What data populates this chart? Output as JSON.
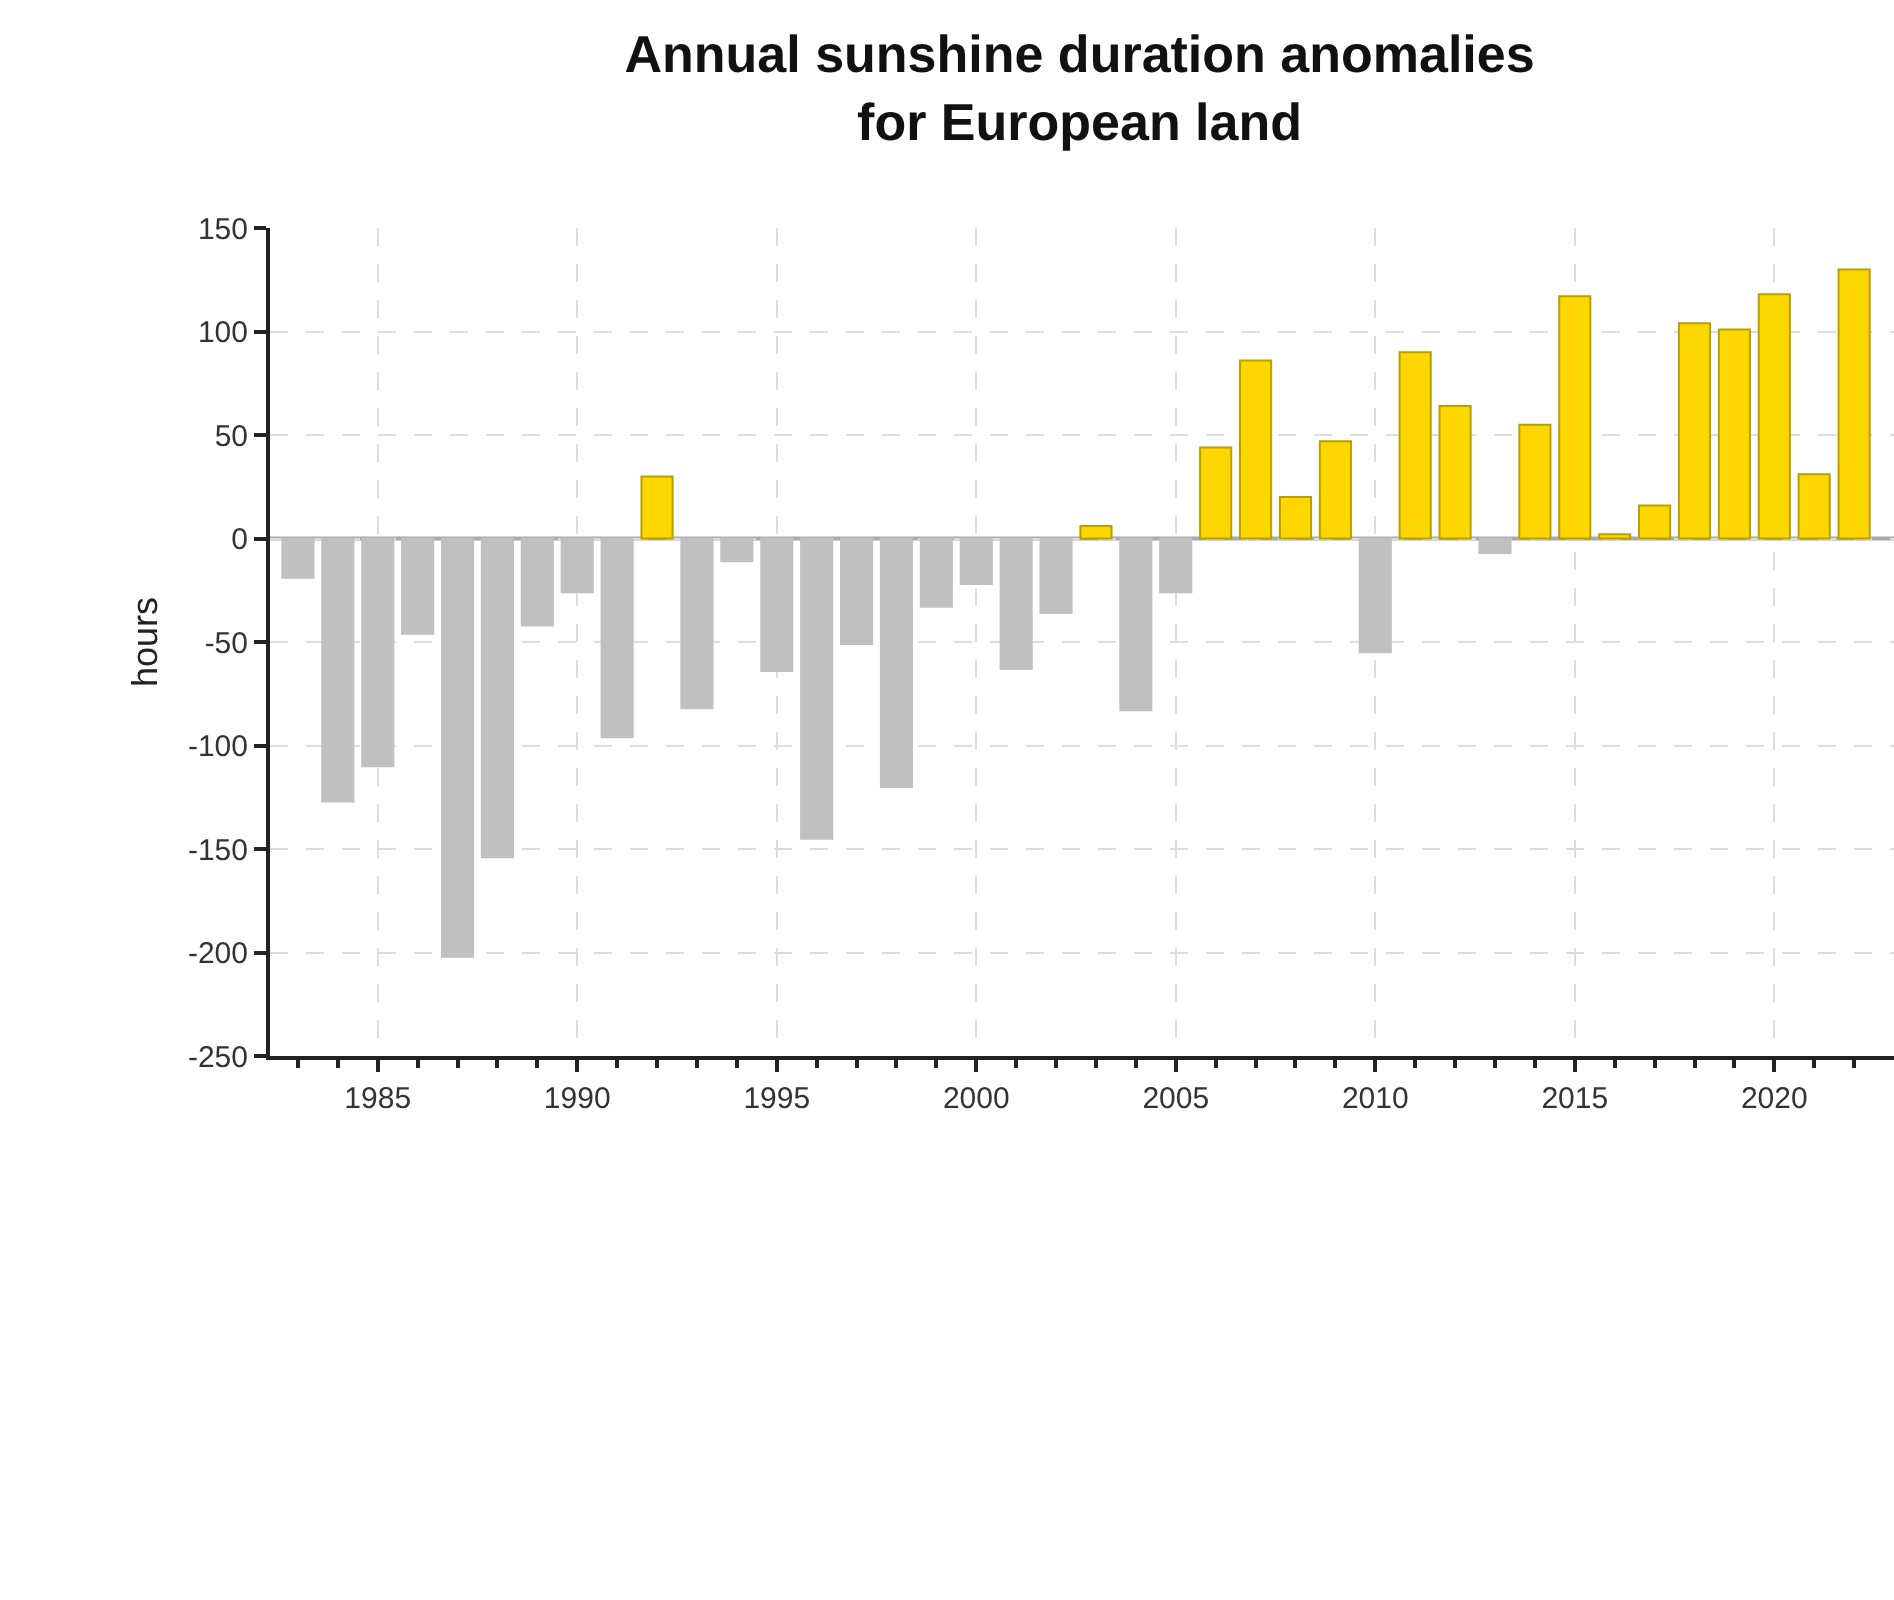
{
  "chart_data": {
    "type": "bar",
    "title": "Annual sunshine duration anomalies\nfor European land",
    "ylabel": "hours",
    "x": [
      1983,
      1984,
      1985,
      1986,
      1987,
      1988,
      1989,
      1990,
      1991,
      1992,
      1993,
      1994,
      1995,
      1996,
      1997,
      1998,
      1999,
      2000,
      2001,
      2002,
      2003,
      2004,
      2005,
      2006,
      2007,
      2008,
      2009,
      2010,
      2011,
      2012,
      2013,
      2014,
      2015,
      2016,
      2017,
      2018,
      2019,
      2020,
      2021,
      2022
    ],
    "values": [
      -19,
      -127,
      -110,
      -46,
      -202,
      -154,
      -42,
      -26,
      -96,
      30,
      -82,
      -11,
      -64,
      -145,
      -51,
      -120,
      -33,
      -22,
      -63,
      -36,
      6,
      -83,
      -26,
      44,
      86,
      20,
      47,
      -55,
      90,
      64,
      -7,
      55,
      117,
      2,
      16,
      104,
      101,
      118,
      31,
      130
    ],
    "colors": [
      "#c0c0c0",
      "#c0c0c0",
      "#c0c0c0",
      "#c0c0c0",
      "#c0c0c0",
      "#c0c0c0",
      "#c0c0c0",
      "#c0c0c0",
      "#c0c0c0",
      "#ffd700",
      "#c0c0c0",
      "#c0c0c0",
      "#c0c0c0",
      "#c0c0c0",
      "#c0c0c0",
      "#c0c0c0",
      "#c0c0c0",
      "#c0c0c0",
      "#c0c0c0",
      "#c0c0c0",
      "#ffd700",
      "#c0c0c0",
      "#c0c0c0",
      "#ffd700",
      "#ffd700",
      "#ffd700",
      "#ffd700",
      "#c0c0c0",
      "#ffd700",
      "#ffd700",
      "#c0c0c0",
      "#ffd700",
      "#ffd700",
      "#ffd700",
      "#ffd700",
      "#ffd700",
      "#ffd700",
      "#ffd700",
      "#ffd700",
      "#ffd700"
    ],
    "xlim": [
      1982.3,
      2023
    ],
    "xticks": [
      {
        "value": 1983,
        "label": null
      },
      {
        "value": 1984,
        "label": null
      },
      1985,
      {
        "value": 1986,
        "label": null
      },
      {
        "value": 1987,
        "label": null
      },
      {
        "value": 1988,
        "label": null
      },
      {
        "value": 1989,
        "label": null
      },
      1990,
      {
        "value": 1991,
        "label": null
      },
      {
        "value": 1992,
        "label": null
      },
      {
        "value": 1993,
        "label": null
      },
      {
        "value": 1994,
        "label": null
      },
      1995,
      {
        "value": 1996,
        "label": null
      },
      {
        "value": 1997,
        "label": null
      },
      {
        "value": 1998,
        "label": null
      },
      {
        "value": 1999,
        "label": null
      },
      2000,
      {
        "value": 2001,
        "label": null
      },
      {
        "value": 2002,
        "label": null
      },
      {
        "value": 2003,
        "label": null
      },
      {
        "value": 2004,
        "label": null
      },
      2005,
      {
        "value": 2006,
        "label": null
      },
      {
        "value": 2007,
        "label": null
      },
      {
        "value": 2008,
        "label": null
      },
      {
        "value": 2009,
        "label": null
      },
      2010,
      {
        "value": 2011,
        "label": null
      },
      {
        "value": 2012,
        "label": null
      },
      {
        "value": 2013,
        "label": null
      },
      {
        "value": 2014,
        "label": null
      },
      2015,
      {
        "value": 2016,
        "label": null
      },
      {
        "value": 2017,
        "label": null
      },
      {
        "value": 2018,
        "label": null
      },
      {
        "value": 2019,
        "label": null
      },
      2020,
      {
        "value": 2021,
        "label": null
      },
      {
        "value": 2022,
        "label": null
      }
    ],
    "ylim": [
      -250,
      150
    ],
    "yticks": [
      -250,
      -200,
      -150,
      -100,
      -50,
      0,
      50,
      100,
      150
    ],
    "grid": true
  }
}
